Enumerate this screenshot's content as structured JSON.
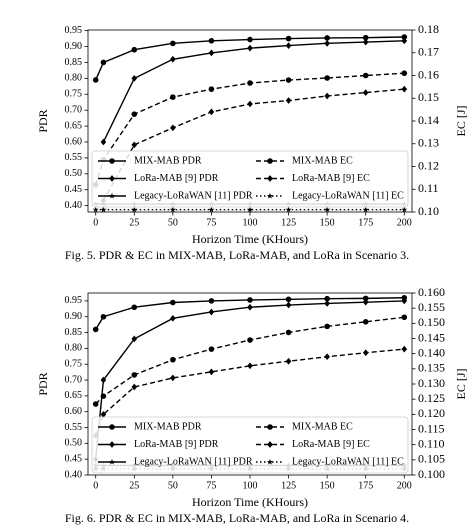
{
  "chart_data": [
    {
      "type": "line",
      "caption": "Fig. 5.  PDR & EC in MIX-MAB, LoRa-MAB, and LoRa in Scenario 3.",
      "xlabel": "Horizon Time (KHours)",
      "ylabel": "PDR",
      "y2label": "EC [J]",
      "x": [
        0,
        5,
        25,
        50,
        75,
        100,
        125,
        150,
        175,
        200
      ],
      "xlim": [
        -5,
        205
      ],
      "xticks": [
        0,
        25,
        50,
        75,
        100,
        125,
        150,
        175,
        200
      ],
      "ylim": [
        0.38,
        0.952
      ],
      "yticks": [
        {
          "value": 0.4,
          "label": "0.40"
        },
        0.45,
        {
          "value": 0.5,
          "label": "0.50"
        },
        0.55,
        {
          "value": 0.6,
          "label": "0.60"
        },
        0.65,
        {
          "value": 0.7,
          "label": "0.70"
        },
        0.75,
        {
          "value": 0.8,
          "label": "0.80"
        },
        0.85,
        {
          "value": 0.9,
          "label": "0.90"
        },
        0.95
      ],
      "y2lim": [
        0.1,
        0.18
      ],
      "y2ticks": [
        {
          "value": 0.1,
          "label": "0.10"
        },
        0.11,
        0.12,
        0.13,
        0.14,
        0.15,
        0.16,
        0.17,
        0.18
      ],
      "legend": "lower center",
      "series": [
        {
          "name": "MIX-MAB PDR",
          "color": "#000000",
          "dash": "solid",
          "marker": "circle",
          "values": [
            0.795,
            0.85,
            0.89,
            0.91,
            0.918,
            0.922,
            0.925,
            0.927,
            0.928,
            0.93
          ]
        },
        {
          "name": "LoRa-MAB [9] PDR",
          "color": "#000000",
          "dash": "solid",
          "marker": "diamond",
          "values": [
            null,
            0.6,
            0.8,
            0.86,
            0.88,
            0.895,
            0.903,
            0.91,
            0.914,
            0.918
          ]
        },
        {
          "name": "Legacy-LoRaWAN [11] PDR",
          "color": "#000000",
          "dash": "solid",
          "marker": "star",
          "values": [
            0.405,
            0.405,
            0.405,
            0.405,
            0.405,
            0.405,
            0.405,
            0.405,
            0.405,
            0.405
          ]
        },
        {
          "name": "MIX-MAB EC",
          "color": "#000000",
          "dash": "dashed",
          "marker": "circle",
          "axis": "y2",
          "values": [
            0.112,
            0.123,
            0.143,
            0.1505,
            0.154,
            0.1567,
            0.158,
            0.1589,
            0.16,
            0.161
          ]
        },
        {
          "name": "LoRa-MAB [9] EC",
          "color": "#000000",
          "dash": "dashed",
          "marker": "diamond",
          "axis": "y2",
          "values": [
            null,
            0.105,
            0.1295,
            0.137,
            0.144,
            0.1475,
            0.149,
            0.151,
            0.1525,
            0.154
          ]
        },
        {
          "name": "Legacy-LoRaWAN [11] EC",
          "color": "#000000",
          "dash": "dotted",
          "marker": "star",
          "axis": "y2",
          "values": [
            0.101,
            0.101,
            0.101,
            0.101,
            0.101,
            0.101,
            0.101,
            0.101,
            0.101,
            0.101
          ]
        }
      ]
    },
    {
      "type": "line",
      "caption": "Fig. 6.  PDR & EC in MIX-MAB, LoRa-MAB, and LoRa in Scenario 4.",
      "xlabel": "Horizon Time (KHours)",
      "ylabel": "PDR",
      "y2label": "EC [J]",
      "x": [
        0,
        5,
        25,
        50,
        75,
        100,
        125,
        150,
        175,
        200
      ],
      "xlim": [
        -5,
        205
      ],
      "xticks": [
        0,
        25,
        50,
        75,
        100,
        125,
        150,
        175,
        200
      ],
      "ylim": [
        0.4,
        0.975
      ],
      "yticks": [
        {
          "value": 0.4,
          "label": "0.40"
        },
        0.45,
        {
          "value": 0.5,
          "label": "0.50"
        },
        0.55,
        {
          "value": 0.6,
          "label": "0.60"
        },
        0.65,
        {
          "value": 0.7,
          "label": "0.70"
        },
        0.75,
        {
          "value": 0.8,
          "label": "0.80"
        },
        0.85,
        {
          "value": 0.9,
          "label": "0.90"
        },
        0.95
      ],
      "y2lim": [
        0.1,
        0.16
      ],
      "y2ticks": [
        {
          "value": 0.1,
          "label": "0.100"
        },
        0.105,
        {
          "value": 0.11,
          "label": "0.110"
        },
        0.115,
        {
          "value": 0.12,
          "label": "0.120"
        },
        0.125,
        {
          "value": 0.13,
          "label": "0.130"
        },
        0.135,
        {
          "value": 0.14,
          "label": "0.140"
        },
        0.145,
        {
          "value": 0.15,
          "label": "0.150"
        },
        0.155,
        {
          "value": 0.16,
          "label": "0.160"
        }
      ],
      "legend": "lower center",
      "series": [
        {
          "name": "MIX-MAB PDR",
          "color": "#000000",
          "dash": "solid",
          "marker": "circle",
          "values": [
            0.86,
            0.9,
            0.93,
            0.945,
            0.95,
            0.953,
            0.955,
            0.957,
            0.958,
            0.96
          ]
        },
        {
          "name": "LoRa-MAB [9] PDR",
          "color": "#000000",
          "dash": "solid",
          "marker": "diamond",
          "values": [
            0.45,
            0.7,
            0.83,
            0.895,
            0.915,
            0.93,
            0.937,
            0.942,
            0.946,
            0.95
          ]
        },
        {
          "name": "Legacy-LoRaWAN [11] PDR",
          "color": "#000000",
          "dash": "solid",
          "marker": "star",
          "values": [
            0.43,
            0.43,
            0.43,
            0.43,
            0.43,
            0.43,
            0.43,
            0.43,
            0.43,
            0.43
          ]
        },
        {
          "name": "MIX-MAB EC",
          "color": "#000000",
          "dash": "dashed",
          "marker": "circle",
          "axis": "y2",
          "values": [
            0.1234,
            0.126,
            0.133,
            0.138,
            0.1415,
            0.1445,
            0.147,
            0.149,
            0.1505,
            0.152
          ]
        },
        {
          "name": "LoRa-MAB [9] EC",
          "color": "#000000",
          "dash": "dashed",
          "marker": "diamond",
          "axis": "y2",
          "values": [
            0.113,
            0.12,
            0.129,
            0.132,
            0.134,
            0.136,
            0.1375,
            0.139,
            0.1403,
            0.1415
          ]
        },
        {
          "name": "Legacy-LoRaWAN [11] EC",
          "color": "#000000",
          "dash": "dotted",
          "marker": "star",
          "axis": "y2",
          "values": [
            0.102,
            0.102,
            0.102,
            0.102,
            0.102,
            0.102,
            0.102,
            0.102,
            0.102,
            0.102
          ]
        }
      ]
    }
  ]
}
